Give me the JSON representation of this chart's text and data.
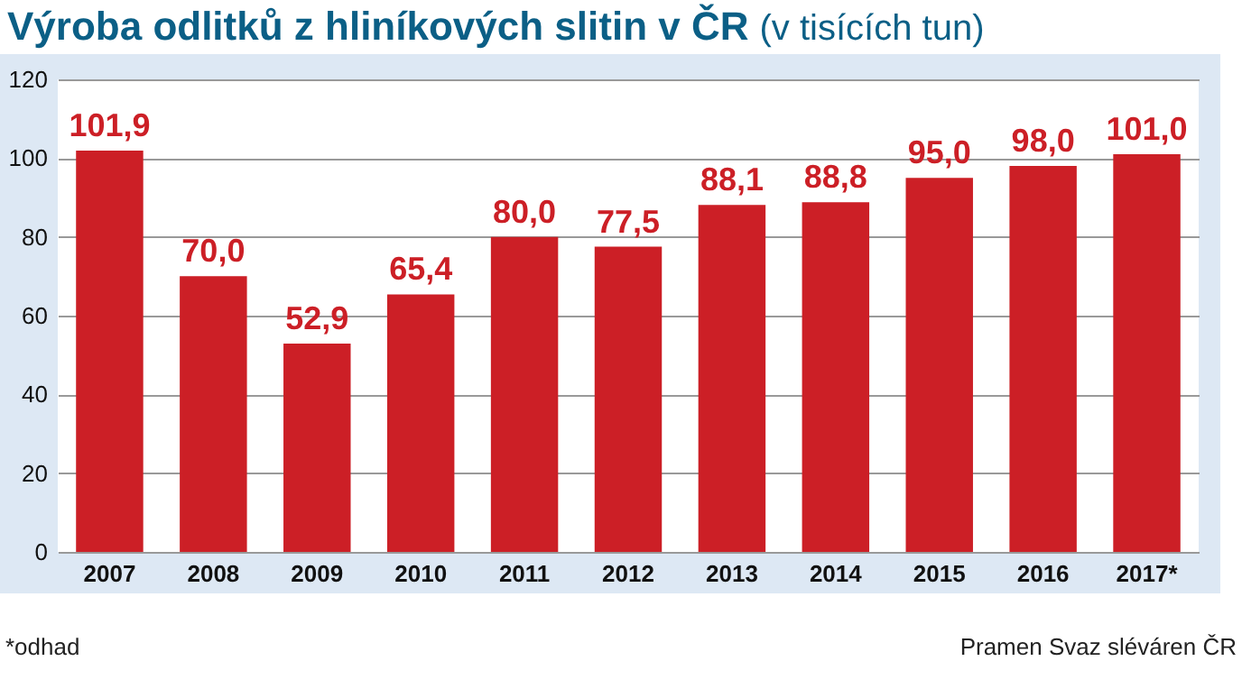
{
  "chart_data": {
    "type": "bar",
    "title": "Výroba odlitků z hliníkových slitin v ČR",
    "subtitle": "(v tisících tun)",
    "categories": [
      "2007",
      "2008",
      "2009",
      "2010",
      "2011",
      "2012",
      "2013",
      "2014",
      "2015",
      "2016",
      "2017*"
    ],
    "values": [
      101.9,
      70.0,
      52.9,
      65.4,
      80.0,
      77.5,
      88.1,
      88.8,
      95.0,
      98.0,
      101.0
    ],
    "value_labels": [
      "101,9",
      "70,0",
      "52,9",
      "65,4",
      "80,0",
      "77,5",
      "88,1",
      "88,8",
      "95,0",
      "98,0",
      "101,0"
    ],
    "color": "#cc1f26",
    "ylim": [
      0,
      120
    ],
    "yticks": [
      0,
      20,
      40,
      60,
      80,
      100,
      120
    ],
    "grid": "y",
    "annotations": [
      "*odhad",
      "Pramen Svaz sléváren ČR"
    ]
  }
}
